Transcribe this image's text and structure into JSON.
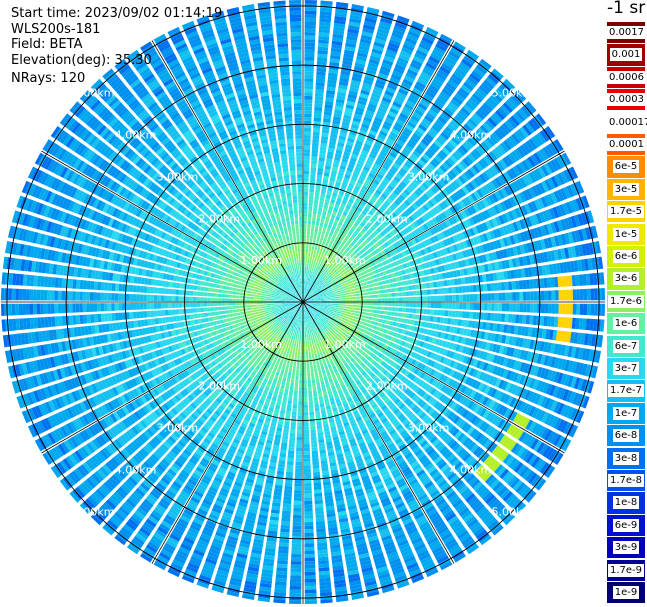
{
  "info": {
    "start_time": "Start time: 2023/09/02 01:14:19",
    "instrument": "WLS200s-181",
    "field": "Field: BETA",
    "elevation": "Elevation(deg): 35.30",
    "nrays": "NRays: 120"
  },
  "colorbar": {
    "title": "-1 sr",
    "labels": [
      "0.0017",
      "0.001",
      "0.0006",
      "0.0003",
      "0.00017",
      "0.0001",
      "6e-5",
      "3e-5",
      "1.7e-5",
      "1e-5",
      "6e-6",
      "3e-6",
      "1.7e-6",
      "1e-6",
      "6e-7",
      "3e-7",
      "1.7e-7",
      "1e-7",
      "6e-8",
      "3e-8",
      "1.7e-8",
      "1e-8",
      "6e-9",
      "3e-9",
      "1.7e-9",
      "1e-9"
    ],
    "colors": [
      "#7a0000",
      "#a00000",
      "#c80000",
      "#e80000",
      "#ffffff",
      "#ff5a00",
      "#ff8c00",
      "#ffb400",
      "#ffd200",
      "#f0e800",
      "#d2f000",
      "#b4f028",
      "#8cf064",
      "#64f0a0",
      "#40e8d2",
      "#28d8f0",
      "#14c0f0",
      "#00a8f0",
      "#0090f0",
      "#0070f0",
      "#0050f0",
      "#0030e0",
      "#0010d0",
      "#0000b8",
      "#000096",
      "#00006e"
    ]
  },
  "chart_data": {
    "type": "heatmap",
    "projection": "polar-ppi",
    "field": "BETA",
    "units": "-1 sr",
    "nrays": 120,
    "range_rings_km": [
      1,
      2,
      3,
      4,
      5
    ],
    "range_ring_labels": [
      "1.00km",
      "2.00km",
      "3.00km",
      "4.00km",
      "5.00km"
    ],
    "spoke_angles_deg": [
      0,
      30,
      60,
      90,
      120,
      150,
      180,
      210,
      240,
      270,
      300,
      330
    ],
    "max_range_km": 5.1,
    "gate_spacing_km": 0.06,
    "radial_profile": [
      {
        "range_km": 0.0,
        "level": 15
      },
      {
        "range_km": 0.5,
        "level": 14
      },
      {
        "range_km": 0.8,
        "level": 12
      },
      {
        "range_km": 1.1,
        "level": 13
      },
      {
        "range_km": 1.6,
        "level": 14
      },
      {
        "range_km": 2.2,
        "level": 15
      },
      {
        "range_km": 3.0,
        "level": 16
      },
      {
        "range_km": 4.0,
        "level": 17
      },
      {
        "range_km": 5.1,
        "level": 18
      }
    ],
    "features": [
      {
        "description": "high backscatter band",
        "azimuth_deg_from": 85,
        "azimuth_deg_to": 100,
        "range_km_from": 4.35,
        "range_km_to": 4.55,
        "level": 8
      },
      {
        "description": "high backscatter band",
        "azimuth_deg_from": 118,
        "azimuth_deg_to": 135,
        "range_km_from": 4.1,
        "range_km_to": 4.3,
        "level": 11
      }
    ],
    "colorbar_scale": "log",
    "colorbar_range": [
      1e-09,
      0.0017
    ]
  }
}
